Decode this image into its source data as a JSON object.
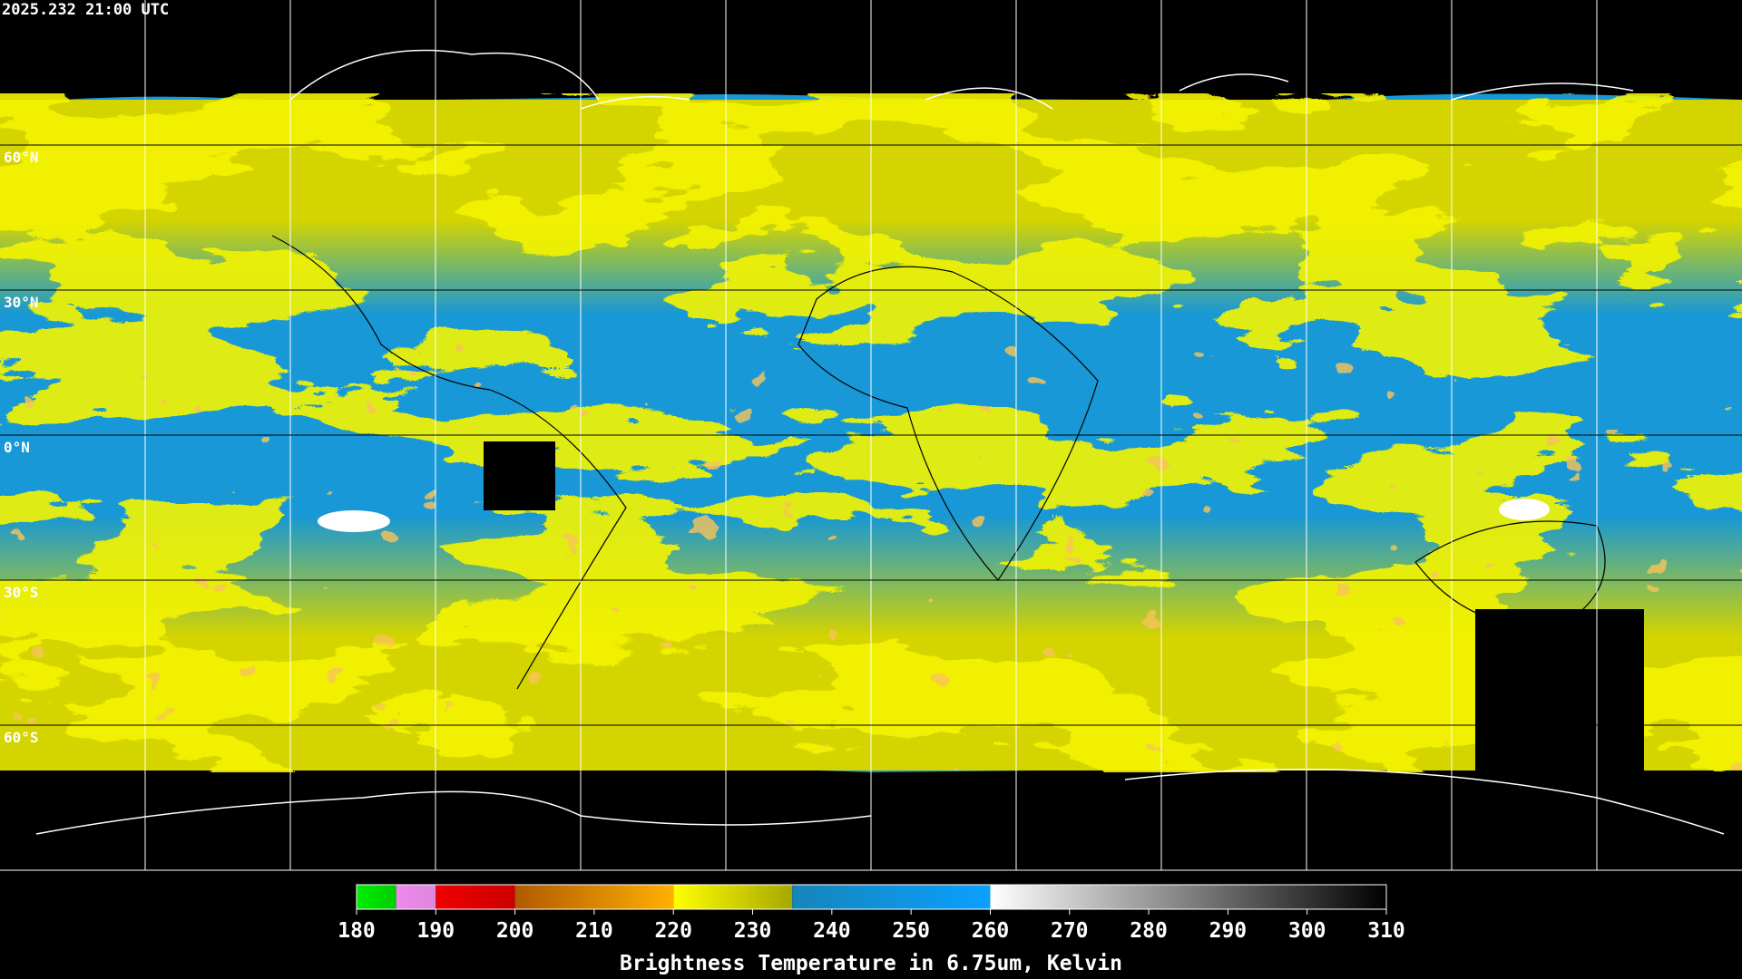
{
  "header": {
    "timestamp": "2025.232 21:00 UTC"
  },
  "map": {
    "latitude_labels": [
      "60°N",
      "30°N",
      "0°N",
      "30°S",
      "60°S"
    ]
  },
  "colorbar": {
    "title": "Brightness Temperature in 6.75um, Kelvin",
    "range": [
      180,
      310
    ],
    "ticks": [
      180,
      190,
      200,
      210,
      220,
      230,
      240,
      250,
      260,
      270,
      280,
      290,
      300,
      310
    ],
    "segments": [
      {
        "from": 180,
        "to": 185,
        "colors": [
          "#00ee00",
          "#00cc00"
        ]
      },
      {
        "from": 185,
        "to": 190,
        "colors": [
          "#ee88ee",
          "#dd88dd"
        ]
      },
      {
        "from": 190,
        "to": 200,
        "colors": [
          "#ee0000",
          "#cc0000"
        ]
      },
      {
        "from": 200,
        "to": 220,
        "colors": [
          "#b05a00",
          "#ffb000"
        ]
      },
      {
        "from": 220,
        "to": 235,
        "colors": [
          "#ffff00",
          "#a8a800"
        ]
      },
      {
        "from": 235,
        "to": 260,
        "colors": [
          "#1585b8",
          "#0aa0ff"
        ]
      },
      {
        "from": 260,
        "to": 310,
        "colors": [
          "#ffffff",
          "#000000"
        ]
      }
    ]
  }
}
